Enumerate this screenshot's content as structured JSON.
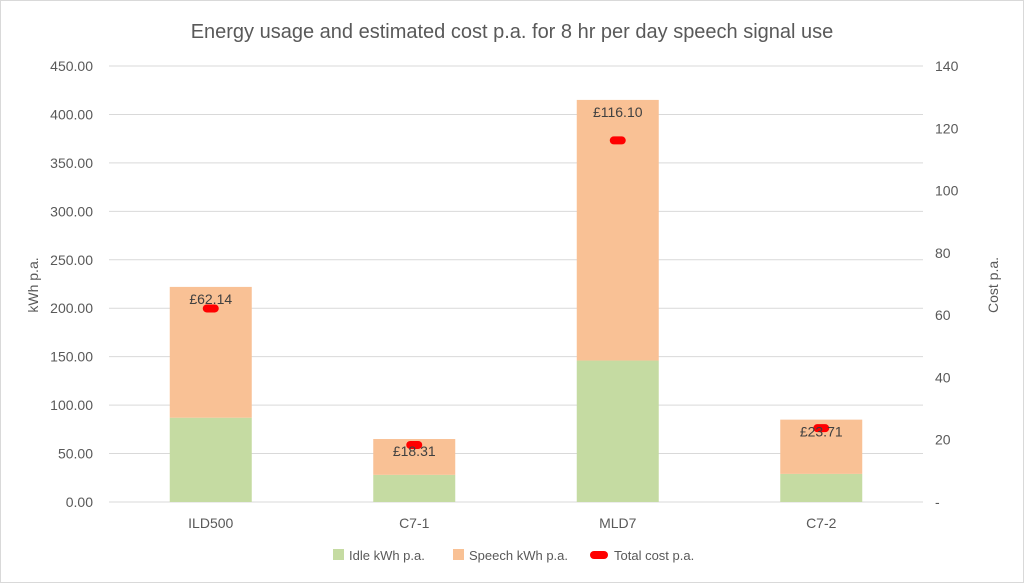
{
  "chart_data": {
    "type": "bar",
    "title": "Energy usage and estimated cost p.a. for 8 hr per day speech signal use",
    "categories": [
      "ILD500",
      "C7-1",
      "MLD7",
      "C7-2"
    ],
    "series": [
      {
        "name": "Idle kWh p.a.",
        "type": "bar",
        "stacked": true,
        "axis": "left",
        "color": "#c5dba2",
        "values": [
          87,
          28,
          146,
          29
        ]
      },
      {
        "name": "Speech kWh p.a.",
        "type": "bar",
        "stacked": true,
        "axis": "left",
        "color": "#f9c195",
        "values": [
          135,
          37,
          269,
          56
        ]
      },
      {
        "name": "Total cost p.a.",
        "type": "marker",
        "axis": "right",
        "color": "#ff0000",
        "values": [
          62.14,
          18.31,
          116.1,
          23.71
        ],
        "labels": [
          "£62.14",
          "£18.31",
          "£116.10",
          "£23.71"
        ]
      }
    ],
    "ylabel": "kWh p.a.",
    "ylim": [
      0,
      450
    ],
    "yticks": [
      "0.00",
      "50.00",
      "100.00",
      "150.00",
      "200.00",
      "250.00",
      "300.00",
      "350.00",
      "400.00",
      "450.00"
    ],
    "y2label": "Cost p.a.",
    "y2lim": [
      0,
      140
    ],
    "y2ticks": [
      "-",
      "20",
      "40",
      "60",
      "80",
      "100",
      "120",
      "140"
    ],
    "grid": true,
    "legend_position": "bottom"
  }
}
